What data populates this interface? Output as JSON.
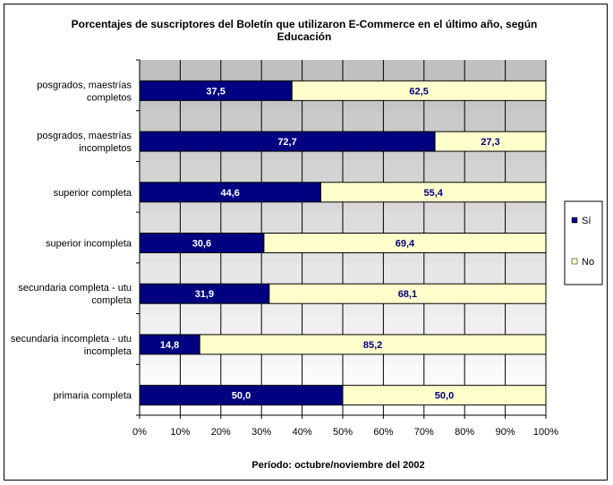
{
  "chart_data": {
    "type": "bar",
    "orientation": "horizontal",
    "stacked": true,
    "title_line1": "Porcentajes de suscriptores del Boletín que utilizaron E-Commerce en el último año, según",
    "title_line2": "Educación",
    "xlabel": "Período: octubre/noviembre del 2002",
    "categories": [
      [
        "posgrados, maestrías",
        "completos"
      ],
      [
        "posgrados, maestrías",
        "incompletos"
      ],
      [
        "superior completa"
      ],
      [
        "superior incompleta"
      ],
      [
        "secundaria completa - utu",
        "completa"
      ],
      [
        "secundaria incompleta - utu",
        "incompleta"
      ],
      [
        "primaria completa"
      ]
    ],
    "series": [
      {
        "name": "Sí",
        "color": "#000080",
        "label_color": "#ffffff",
        "values": [
          37.5,
          72.7,
          44.6,
          30.6,
          31.9,
          14.8,
          50.0
        ],
        "labels": [
          "37,5",
          "72,7",
          "44,6",
          "30,6",
          "31,9",
          "14,8",
          "50,0"
        ]
      },
      {
        "name": "No",
        "color": "#ffffcc",
        "label_color": "#000080",
        "values": [
          62.5,
          27.3,
          55.4,
          69.4,
          68.1,
          85.2,
          50.0
        ],
        "labels": [
          "62,5",
          "27,3",
          "55,4",
          "69,4",
          "68,1",
          "85,2",
          "50,0"
        ]
      }
    ],
    "xticks": [
      "0%",
      "10%",
      "20%",
      "30%",
      "40%",
      "50%",
      "60%",
      "70%",
      "80%",
      "90%",
      "100%"
    ],
    "xlim": [
      0,
      100
    ],
    "grid": true,
    "legend_position": "right"
  }
}
